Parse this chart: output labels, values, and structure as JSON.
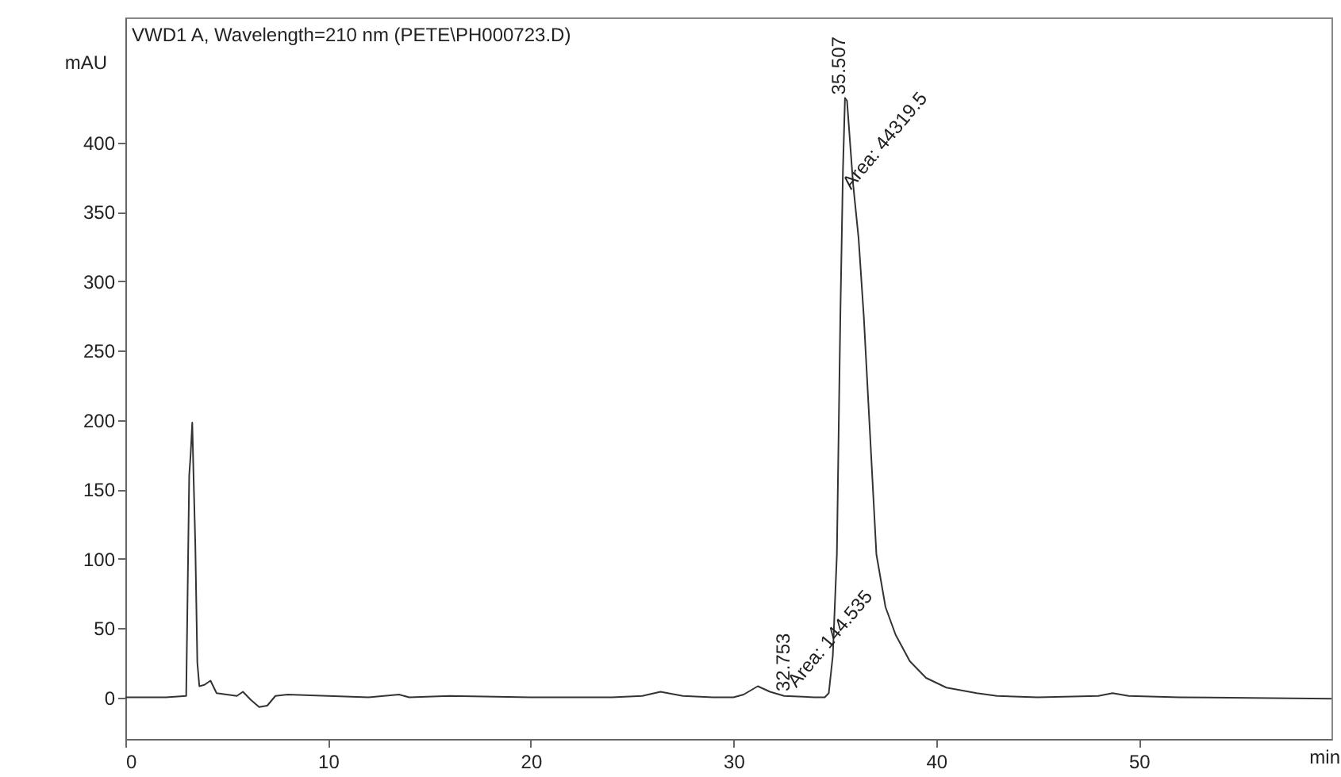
{
  "chart_data": {
    "type": "line",
    "title": "VWD1 A, Wavelength=210 nm (PETE\\PH000723.D)",
    "xlabel": "min",
    "ylabel": "mAU",
    "xlim": [
      0,
      59.5
    ],
    "ylim": [
      -30,
      490
    ],
    "xticks": [
      0,
      10,
      20,
      30,
      40,
      50
    ],
    "yticks": [
      0,
      50,
      100,
      150,
      200,
      250,
      300,
      350,
      400
    ],
    "grid": false,
    "legend": false,
    "marker": "none",
    "line_style": "solid",
    "annotations": [
      {
        "text": "35.507",
        "x": 35.507,
        "y": 432
      },
      {
        "text": "Area: 44319.5",
        "x": 36.0,
        "y": 360
      },
      {
        "text": "32.753",
        "x": 32.753,
        "y": 2
      },
      {
        "text": "Area: 144.535",
        "x": 33.3,
        "y": 1
      }
    ],
    "series": [
      {
        "color": "#333333",
        "x": [
          0,
          2,
          3.0,
          3.15,
          3.22,
          3.3,
          3.38,
          3.45,
          3.55,
          3.65,
          3.9,
          4.2,
          4.5,
          5.0,
          5.5,
          5.8,
          6.2,
          6.6,
          7.0,
          7.4,
          8,
          10,
          12,
          13.5,
          14,
          16,
          20,
          24,
          25.5,
          26.4,
          27.5,
          29,
          30,
          30.5,
          31.2,
          31.8,
          32.5,
          34,
          34.5,
          34.7,
          34.9,
          35.1,
          35.27,
          35.4,
          35.5,
          35.6,
          35.9,
          36.17,
          36.43,
          37.05,
          37.5,
          38,
          38.7,
          39.5,
          40.5,
          42,
          43,
          45,
          48,
          48.7,
          49.5,
          52,
          59.5
        ],
        "values": [
          0,
          0,
          1,
          160,
          175,
          198,
          150,
          110,
          25,
          8,
          9,
          12,
          3,
          2,
          1,
          4,
          -2,
          -7,
          -6,
          1,
          2,
          1,
          0,
          2,
          0,
          1,
          0,
          0,
          1,
          4,
          1,
          0,
          0,
          2,
          8,
          4,
          1,
          0,
          0,
          3,
          30,
          103,
          274,
          380,
          432,
          430,
          370,
          331,
          274,
          103,
          65,
          45,
          26,
          14,
          7,
          3,
          1,
          0,
          1,
          3,
          1,
          0,
          -1
        ]
      }
    ]
  }
}
